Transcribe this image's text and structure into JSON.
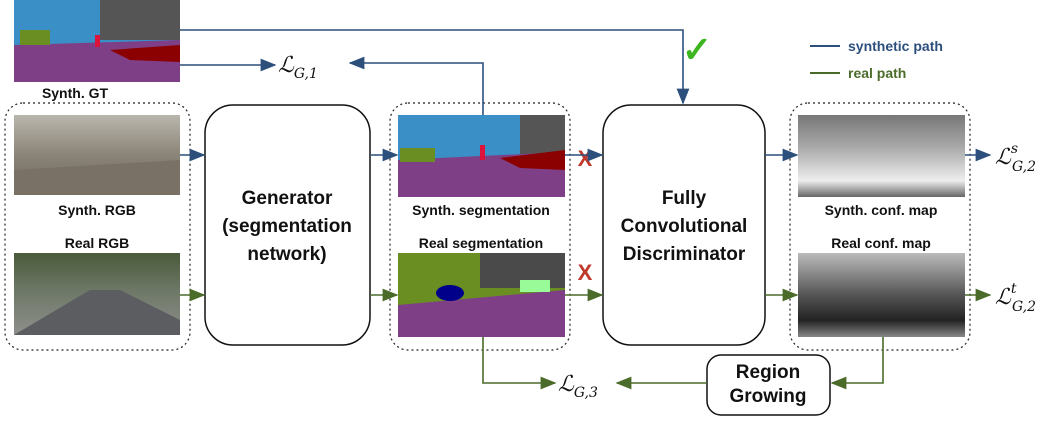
{
  "images": {
    "synth_gt": "Synth. GT",
    "synth_rgb": "Synth. RGB",
    "real_rgb": "Real RGB",
    "synth_seg": "Synth. segmentation",
    "real_seg": "Real segmentation",
    "synth_conf": "Synth. conf. map",
    "real_conf": "Real conf. map"
  },
  "nodes": {
    "generator": [
      "Generator",
      "(segmentation",
      "network)"
    ],
    "discriminator": [
      "Fully",
      "Convolutional",
      "Discriminator"
    ],
    "region_growing": [
      "Region",
      "Growing"
    ]
  },
  "losses": [
    {
      "symbol": "ℒ",
      "sub": "G,1"
    },
    {
      "symbol": "ℒ",
      "sub": "G,2",
      "sup": "s"
    },
    {
      "symbol": "ℒ",
      "sub": "G,2",
      "sup": "t"
    },
    {
      "symbol": "ℒ",
      "sub": "G,3"
    }
  ],
  "legend": [
    "synthetic path",
    "real path"
  ],
  "marks": {
    "check": "✓",
    "cross": "X"
  }
}
